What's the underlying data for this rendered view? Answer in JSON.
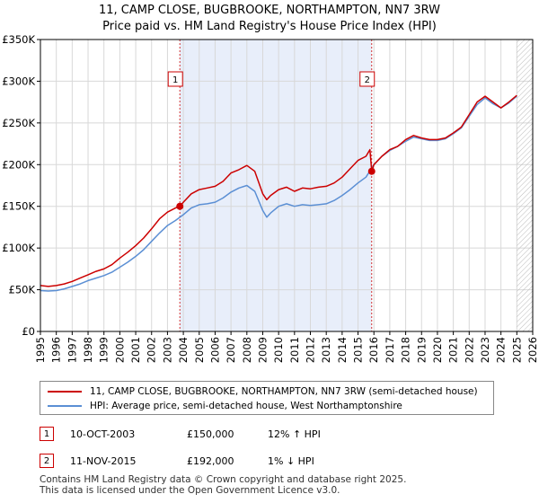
{
  "title_line1": "11, CAMP CLOSE, BUGBROOKE, NORTHAMPTON, NN7 3RW",
  "title_line2": "Price paid vs. HM Land Registry's House Price Index (HPI)",
  "colors": {
    "property": "#cc0000",
    "hpi": "#5b8fd4",
    "shade": "#e8eefa",
    "grid": "#d8d8d8"
  },
  "chart_data": {
    "type": "line",
    "xlim": [
      1995,
      2026
    ],
    "ylim": [
      0,
      350000
    ],
    "x_ticks": [
      "1995",
      "1996",
      "1997",
      "1998",
      "1999",
      "2000",
      "2001",
      "2002",
      "2003",
      "2004",
      "2005",
      "2006",
      "2007",
      "2008",
      "2009",
      "2010",
      "2011",
      "2012",
      "2013",
      "2014",
      "2015",
      "2016",
      "2017",
      "2018",
      "2019",
      "2020",
      "2021",
      "2022",
      "2023",
      "2024",
      "2025",
      "2026"
    ],
    "y_ticks": [
      {
        "value": 0,
        "label": "£0"
      },
      {
        "value": 50000,
        "label": "£50K"
      },
      {
        "value": 100000,
        "label": "£100K"
      },
      {
        "value": 150000,
        "label": "£150K"
      },
      {
        "value": 200000,
        "label": "£200K"
      },
      {
        "value": 250000,
        "label": "£250K"
      },
      {
        "value": 300000,
        "label": "£300K"
      },
      {
        "value": 350000,
        "label": "£350K"
      }
    ],
    "shaded_period": [
      2003.78,
      2015.86
    ],
    "forecast_start": 2025.0,
    "series": [
      {
        "name": "11, CAMP CLOSE, BUGBROOKE, NORTHAMPTON, NN7 3RW (semi-detached house)",
        "x": [
          1995,
          1995.5,
          1996,
          1996.5,
          1997,
          1997.5,
          1998,
          1998.5,
          1999,
          1999.5,
          2000,
          2000.5,
          2001,
          2001.5,
          2002,
          2002.5,
          2003,
          2003.5,
          2003.78,
          2004,
          2004.5,
          2005,
          2005.5,
          2006,
          2006.5,
          2007,
          2007.5,
          2008,
          2008.5,
          2009,
          2009.25,
          2009.5,
          2010,
          2010.5,
          2011,
          2011.5,
          2012,
          2012.5,
          2013,
          2013.5,
          2014,
          2014.5,
          2015,
          2015.5,
          2015.75,
          2015.86,
          2016,
          2016.5,
          2017,
          2017.5,
          2018,
          2018.5,
          2019,
          2019.5,
          2020,
          2020.5,
          2021,
          2021.5,
          2022,
          2022.5,
          2023,
          2023.5,
          2024,
          2024.5,
          2025
        ],
        "y": [
          55000,
          54000,
          55000,
          57000,
          60000,
          64000,
          68000,
          72000,
          75000,
          80000,
          88000,
          95000,
          103000,
          112000,
          123000,
          135000,
          143000,
          148000,
          150000,
          155000,
          165000,
          170000,
          172000,
          174000,
          180000,
          190000,
          194000,
          199000,
          192000,
          165000,
          158000,
          163000,
          170000,
          173000,
          168000,
          172000,
          171000,
          173000,
          174000,
          178000,
          185000,
          195000,
          205000,
          210000,
          218000,
          192000,
          200000,
          210000,
          218000,
          222000,
          230000,
          235000,
          232000,
          230000,
          230000,
          232000,
          238000,
          245000,
          260000,
          275000,
          282000,
          275000,
          268000,
          275000,
          283000
        ]
      },
      {
        "name": "HPI: Average price, semi-detached house, West Northamptonshire",
        "x": [
          1995,
          1995.5,
          1996,
          1996.5,
          1997,
          1997.5,
          1998,
          1998.5,
          1999,
          1999.5,
          2000,
          2000.5,
          2001,
          2001.5,
          2002,
          2002.5,
          2003,
          2003.5,
          2004,
          2004.5,
          2005,
          2005.5,
          2006,
          2006.5,
          2007,
          2007.5,
          2008,
          2008.5,
          2009,
          2009.25,
          2009.5,
          2010,
          2010.5,
          2011,
          2011.5,
          2012,
          2012.5,
          2013,
          2013.5,
          2014,
          2014.5,
          2015,
          2015.5,
          2016,
          2016.5,
          2017,
          2017.5,
          2018,
          2018.5,
          2019,
          2019.5,
          2020,
          2020.5,
          2021,
          2021.5,
          2022,
          2022.5,
          2023,
          2023.5,
          2024,
          2024.5,
          2025
        ],
        "y": [
          49000,
          48500,
          49000,
          51000,
          54000,
          57000,
          61000,
          64000,
          67000,
          71000,
          77000,
          83000,
          90000,
          98000,
          108000,
          118000,
          127000,
          133000,
          140000,
          148000,
          152000,
          153000,
          155000,
          160000,
          167000,
          172000,
          175000,
          168000,
          145000,
          137000,
          142000,
          150000,
          153000,
          150000,
          152000,
          151000,
          152000,
          153000,
          157000,
          163000,
          170000,
          178000,
          185000,
          200000,
          210000,
          217000,
          222000,
          228000,
          233000,
          231000,
          229000,
          229000,
          231000,
          237000,
          244000,
          258000,
          272000,
          280000,
          273000,
          268000,
          274000,
          282000
        ]
      }
    ],
    "markers": [
      {
        "id": "1",
        "x": 2003.78,
        "y": 150000
      },
      {
        "id": "2",
        "x": 2015.86,
        "y": 192000
      }
    ]
  },
  "legend": {
    "property_label": "11, CAMP CLOSE, BUGBROOKE, NORTHAMPTON, NN7 3RW (semi-detached house)",
    "hpi_label": "HPI: Average price, semi-detached house, West Northamptonshire"
  },
  "sales": [
    {
      "num": "1",
      "date": "10-OCT-2003",
      "price": "£150,000",
      "hpi": "12% ↑ HPI"
    },
    {
      "num": "2",
      "date": "11-NOV-2015",
      "price": "£192,000",
      "hpi": "1% ↓ HPI"
    }
  ],
  "footer_line1": "Contains HM Land Registry data © Crown copyright and database right 2025.",
  "footer_line2": "This data is licensed under the Open Government Licence v3.0."
}
